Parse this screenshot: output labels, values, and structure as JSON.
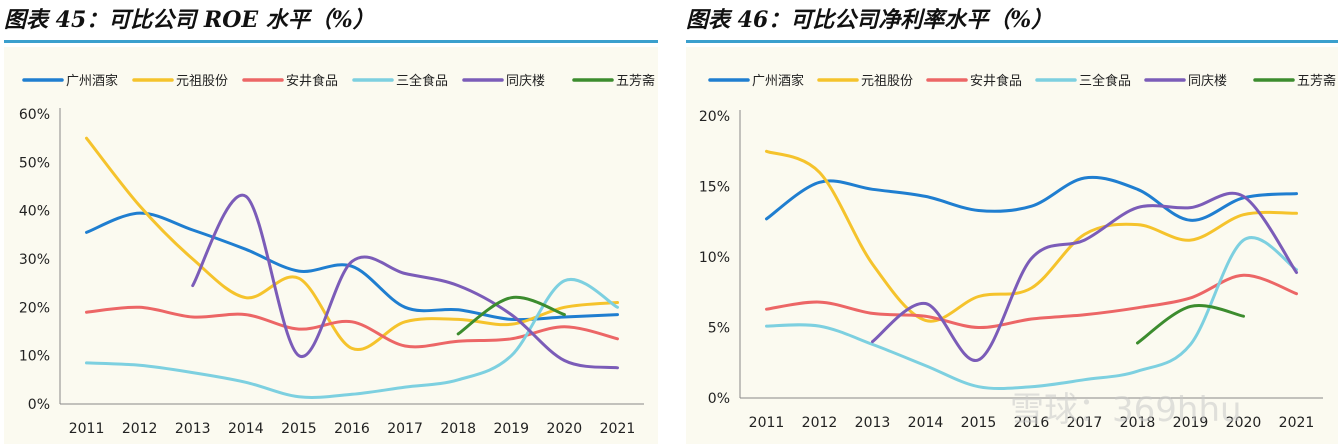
{
  "charts": [
    {
      "title": "图表 45：可比公司 ROE 水平（%）",
      "chart_data": {
        "type": "line",
        "title": "可比公司 ROE 水平（%）",
        "xlabel": "",
        "ylabel": "",
        "ylim": [
          0,
          60
        ],
        "yticks": [
          "0%",
          "10%",
          "20%",
          "30%",
          "40%",
          "50%",
          "60%"
        ],
        "categories": [
          "2011",
          "2012",
          "2013",
          "2014",
          "2015",
          "2016",
          "2017",
          "2018",
          "2019",
          "2020",
          "2021"
        ],
        "series": [
          {
            "name": "广州酒家",
            "color": "#1f7ed0",
            "values": [
              35.5,
              39.5,
              36,
              32,
              27.5,
              28.5,
              20,
              19.5,
              17.5,
              18,
              18.5
            ]
          },
          {
            "name": "元祖股份",
            "color": "#f5c32c",
            "values": [
              55,
              41,
              30,
              22,
              26,
              11.5,
              17,
              17.5,
              16.5,
              20,
              21
            ]
          },
          {
            "name": "安井食品",
            "color": "#ec6666",
            "values": [
              19,
              20,
              18,
              18.5,
              15.5,
              17,
              12,
              13,
              13.5,
              16,
              13.5
            ]
          },
          {
            "name": "三全食品",
            "color": "#7dd0e0",
            "values": [
              8.5,
              8,
              6.5,
              4.5,
              1.5,
              2,
              3.5,
              5,
              10,
              25.5,
              20
            ]
          },
          {
            "name": "同庆楼",
            "color": "#7b5cb8",
            "values": [
              null,
              null,
              24.5,
              43,
              10,
              29.5,
              27,
              24.5,
              18.5,
              9,
              7.5
            ]
          },
          {
            "name": "五芳斋",
            "color": "#3c8c2e",
            "values": [
              null,
              null,
              null,
              null,
              null,
              null,
              null,
              14.5,
              22,
              18.5,
              null
            ]
          }
        ]
      }
    },
    {
      "title": "图表 46：可比公司净利率水平（%）",
      "chart_data": {
        "type": "line",
        "title": "可比公司净利率水平（%）",
        "xlabel": "",
        "ylabel": "",
        "ylim": [
          0,
          20
        ],
        "yticks": [
          "0%",
          "5%",
          "10%",
          "15%",
          "20%"
        ],
        "categories": [
          "2011",
          "2012",
          "2013",
          "2014",
          "2015",
          "2016",
          "2017",
          "2018",
          "2019",
          "2020",
          "2021"
        ],
        "series": [
          {
            "name": "广州酒家",
            "color": "#1f7ed0",
            "values": [
              12.7,
              15.3,
              14.8,
              14.3,
              13.3,
              13.6,
              15.6,
              14.8,
              12.6,
              14.2,
              14.5
            ]
          },
          {
            "name": "元祖股份",
            "color": "#f5c32c",
            "values": [
              17.5,
              16,
              9.5,
              5.5,
              7.2,
              7.8,
              11.6,
              12.3,
              11.2,
              13,
              13.1
            ]
          },
          {
            "name": "安井食品",
            "color": "#ec6666",
            "values": [
              6.3,
              6.8,
              6,
              5.8,
              5,
              5.6,
              5.9,
              6.4,
              7.1,
              8.7,
              7.4
            ]
          },
          {
            "name": "三全食品",
            "color": "#7dd0e0",
            "values": [
              5.1,
              5.1,
              3.8,
              2.3,
              0.8,
              0.8,
              1.3,
              1.9,
              3.8,
              11.2,
              9.1
            ]
          },
          {
            "name": "同庆楼",
            "color": "#7b5cb8",
            "values": [
              null,
              null,
              4,
              6.7,
              2.7,
              9.9,
              11.2,
              13.5,
              13.5,
              14.3,
              8.9
            ]
          },
          {
            "name": "五芳斋",
            "color": "#3c8c2e",
            "values": [
              null,
              null,
              null,
              null,
              null,
              null,
              null,
              3.9,
              6.5,
              5.8,
              null
            ]
          }
        ]
      }
    }
  ],
  "watermark": "雪球：369hhu"
}
